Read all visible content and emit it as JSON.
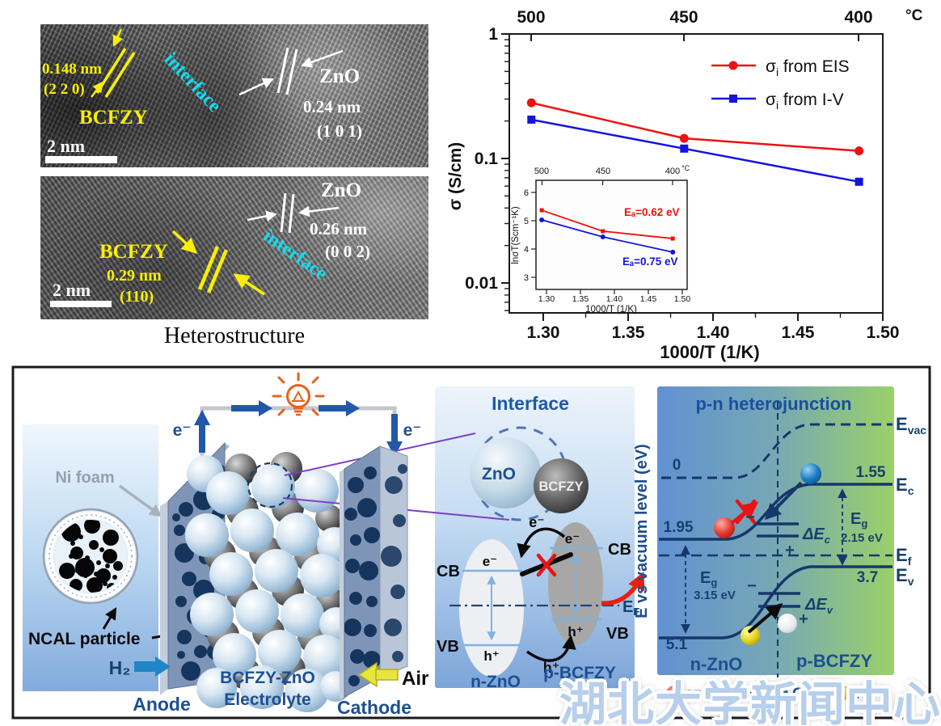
{
  "tem": {
    "p1": {
      "d": "0.148 nm",
      "plane": "(2 2 0)",
      "mat": "BCFZY",
      "iface": "interface",
      "scale": "2 nm",
      "zno": "ZnO",
      "zno_d": "0.24 nm",
      "zno_plane": "(1 0 1)"
    },
    "p2": {
      "zno": "ZnO",
      "zno_d": "0.26 nm",
      "zno_plane": "(0 0 2)",
      "mat": "BCFZY",
      "d": "0.29 nm",
      "plane": "(110)",
      "iface": "interface",
      "scale": "2 nm"
    },
    "caption": "Heterostructure"
  },
  "chart": {
    "top_ticks": [
      "500",
      "450",
      "400"
    ],
    "deg": "°C",
    "y_ticks": [
      "1",
      "0.1",
      "0.01"
    ],
    "ylabel": "σ (S/cm)",
    "x_ticks": [
      "1.30",
      "1.35",
      "1.40",
      "1.45",
      "1.50"
    ],
    "xlabel": "1000/T (1/K)",
    "legend": [
      {
        "sigma": "σ",
        "sub": "i",
        "rest": " from EIS"
      },
      {
        "sigma": "σ",
        "sub": "i",
        "rest": " from I-V"
      }
    ],
    "inset": {
      "top_ticks": [
        "500",
        "450",
        "400"
      ],
      "deg": "°C",
      "y_ticks": [
        "6",
        "5",
        "4",
        "3"
      ],
      "ylabel": "lnσT(Scm⁻¹K)",
      "x_ticks": [
        "1.30",
        "1.35",
        "1.40",
        "1.45",
        "1.50"
      ],
      "xlabel": "1000/T (1/K)",
      "ea_red": "Eₐ=0.62 eV",
      "ea_blue": "Eₐ=0.75 eV"
    }
  },
  "chart_data": {
    "type": "line",
    "title": "",
    "xlabel": "1000/T (1/K)",
    "ylabel": "σ (S/cm)",
    "yscale": "log",
    "xlim": [
      1.28,
      1.505
    ],
    "ylim": [
      0.005,
      1
    ],
    "x": [
      1.293,
      1.383,
      1.486
    ],
    "x_temps_C": [
      500,
      450,
      400
    ],
    "series": [
      {
        "name": "σi from EIS",
        "color": "#ee1111",
        "marker": "circle",
        "values": [
          0.28,
          0.145,
          0.115
        ]
      },
      {
        "name": "σi from I-V",
        "color": "#1414dd",
        "marker": "square",
        "values": [
          0.205,
          0.12,
          0.065
        ]
      }
    ],
    "legend_position": "top-right",
    "inset": {
      "type": "line",
      "xlabel": "1000/T (1/K)",
      "ylabel": "lnσT(Scm⁻¹K)",
      "xlim": [
        1.28,
        1.51
      ],
      "ylim": [
        2.6,
        6.4
      ],
      "x": [
        1.293,
        1.383,
        1.486
      ],
      "series": [
        {
          "name": "EIS",
          "color": "#ee1111",
          "marker": "square",
          "values": [
            5.37,
            4.63,
            4.37
          ],
          "annotation": "Ea=0.62 eV"
        },
        {
          "name": "I-V",
          "color": "#1414dd",
          "marker": "circle",
          "values": [
            5.03,
            4.43,
            3.89
          ],
          "annotation": "Ea=0.75 eV"
        }
      ]
    }
  },
  "cell": {
    "ni_foam": "Ni foam",
    "ncal": "NCAL particle",
    "h2": "H₂",
    "anode": "Anode",
    "elec1": "BCFZY-ZnO",
    "elec2": "Electrolyte",
    "air": "Air",
    "cathode": "Cathode",
    "e_left": "e⁻",
    "e_right": "e⁻"
  },
  "iface": {
    "title": "Interface",
    "zno": "ZnO",
    "bcfzy": "BCFZY",
    "cb_l": "CB",
    "cb_r": "CB",
    "vb_l": "VB",
    "vb_r": "VB",
    "e_top": "e⁻",
    "e_l": "e⁻",
    "e_r": "e⁻",
    "h_bot": "h⁺",
    "h_l": "h⁺",
    "h_r": "h⁺",
    "ef_b": "E",
    "ef_s": "F",
    "n": "n-ZnO",
    "p": "p-BCFZY"
  },
  "pn": {
    "title": "p-n heterojunction",
    "ylabel": "E vs vacuum level (eV)",
    "zero": "0",
    "v195": "1.95",
    "v155": "1.55",
    "v37": "3.7",
    "v51": "5.1",
    "evac": {
      "b": "E",
      "s": "vac"
    },
    "ec": {
      "b": "E",
      "s": "c"
    },
    "ef": {
      "b": "E",
      "s": "f"
    },
    "ev": {
      "b": "E",
      "s": "v"
    },
    "eg_r": {
      "b": "E",
      "s": "g",
      "val": "2.15 eV"
    },
    "eg_l": {
      "b": "E",
      "s": "g",
      "val": "3.15 eV"
    },
    "dec": {
      "b": "ΔE",
      "s": "c"
    },
    "dev": {
      "b": "ΔE",
      "s": "v"
    },
    "minus_c": "−",
    "plus_c": "+",
    "minus_v": "−",
    "plus_v": "+",
    "n": "n-ZnO",
    "p": "p-BCFZY",
    "legend": {
      "e": "e⁻",
      "h": "h⁺",
      "o": "O²⁻",
      "hp": "H⁺"
    }
  },
  "watermark": "湖北大学新闻中心",
  "colors": {
    "red": "#ee1111",
    "blue": "#1414dd",
    "navy": "#1d4f91",
    "cyan": "#10dff0",
    "yellow": "#f8ef00",
    "orange": "#e8611c",
    "purple": "#7b3fc4",
    "green": "#98d165"
  }
}
